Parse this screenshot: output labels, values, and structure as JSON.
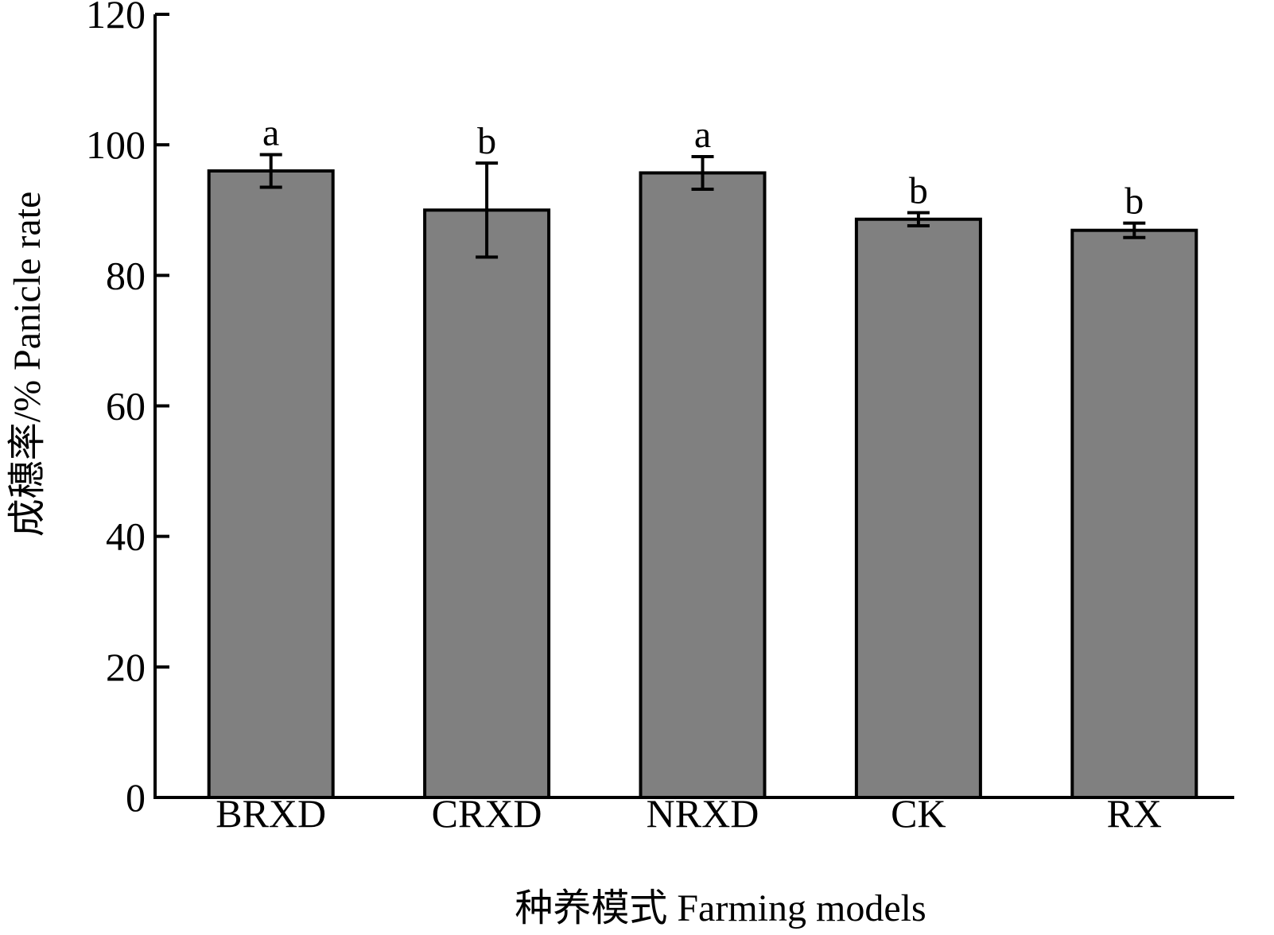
{
  "chart_data": {
    "type": "bar",
    "title": "",
    "xlabel": "种养模式 Farming models",
    "ylabel": "成穗率/% Panicle rate",
    "ylim": [
      0,
      120
    ],
    "yticks": [
      0,
      20,
      40,
      60,
      80,
      100,
      120
    ],
    "categories": [
      "BRXD",
      "CRXD",
      "NRXD",
      "CK",
      "RX"
    ],
    "series": [
      {
        "values": [
          96.0,
          90.0,
          95.7,
          88.6,
          86.9
        ],
        "errors": [
          2.5,
          7.2,
          2.5,
          1.0,
          1.1
        ],
        "significance": [
          "a",
          "b",
          "a",
          "b",
          "b"
        ]
      }
    ],
    "grid": false,
    "legend": "none",
    "colors": {
      "bar_fill": "#808080",
      "bar_stroke": "#000000",
      "axis": "#000000"
    }
  }
}
